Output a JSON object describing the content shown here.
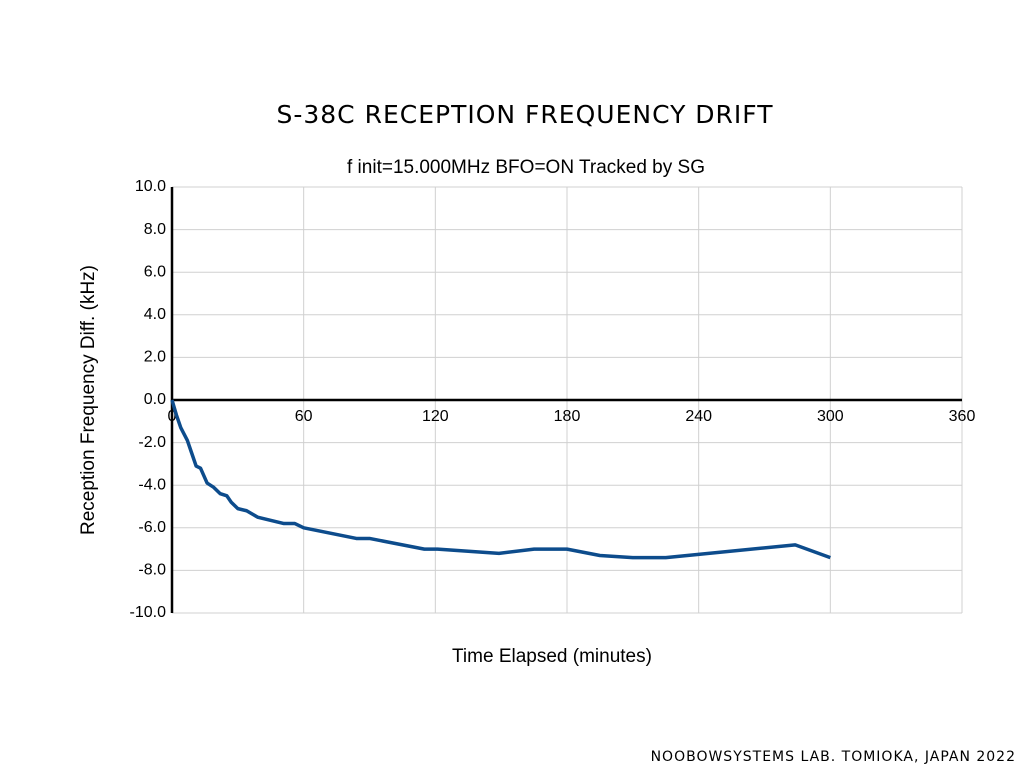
{
  "chart_data": {
    "type": "line",
    "title": "S-38C RECEPTION FREQUENCY DRIFT",
    "subtitle": "f init=15.000MHz BFO=ON Tracked by SG",
    "x_label": "Time Elapsed (minutes)",
    "y_label": "Reception Frequency Diff.  (kHz)",
    "footer": "NOOBOWSYSTEMS LAB. TOMIOKA, JAPAN 2022",
    "x": [
      0,
      2,
      4,
      7,
      9,
      11,
      13,
      16,
      19,
      22,
      25,
      27,
      30,
      34,
      39,
      43,
      51,
      56,
      60,
      84,
      90,
      115,
      121,
      149,
      165,
      180,
      195,
      210,
      225,
      284,
      300
    ],
    "series": [
      {
        "color": "#0d4c8c",
        "values": [
          0,
          -0.7,
          -1.3,
          -1.9,
          -2.5,
          -3.1,
          -3.2,
          -3.9,
          -4.1,
          -4.4,
          -4.5,
          -4.8,
          -5.1,
          -5.2,
          -5.5,
          -5.6,
          -5.8,
          -5.8,
          -6.0,
          -6.5,
          -6.5,
          -7.0,
          -7.0,
          -7.2,
          -7.0,
          -7.0,
          -7.3,
          -7.4,
          -7.4,
          -6.8,
          -7.4
        ]
      }
    ],
    "xlim": [
      0,
      360
    ],
    "xticks": [
      0,
      60,
      120,
      180,
      240,
      300,
      360
    ],
    "ylim": [
      -10,
      10
    ],
    "yticks": [
      {
        "value": 10,
        "label": "10.0"
      },
      {
        "value": 8,
        "label": "8.0"
      },
      {
        "value": 6,
        "label": "6.0"
      },
      {
        "value": 4,
        "label": "4.0"
      },
      {
        "value": 2,
        "label": "2.0"
      },
      {
        "value": 0,
        "label": "0.0"
      },
      {
        "value": -2,
        "label": "-2.0"
      },
      {
        "value": -4,
        "label": "-4.0"
      },
      {
        "value": -6,
        "label": "-6.0"
      },
      {
        "value": -8,
        "label": "-8.0"
      },
      {
        "value": -10,
        "label": "-10.0"
      }
    ],
    "grid": true
  }
}
